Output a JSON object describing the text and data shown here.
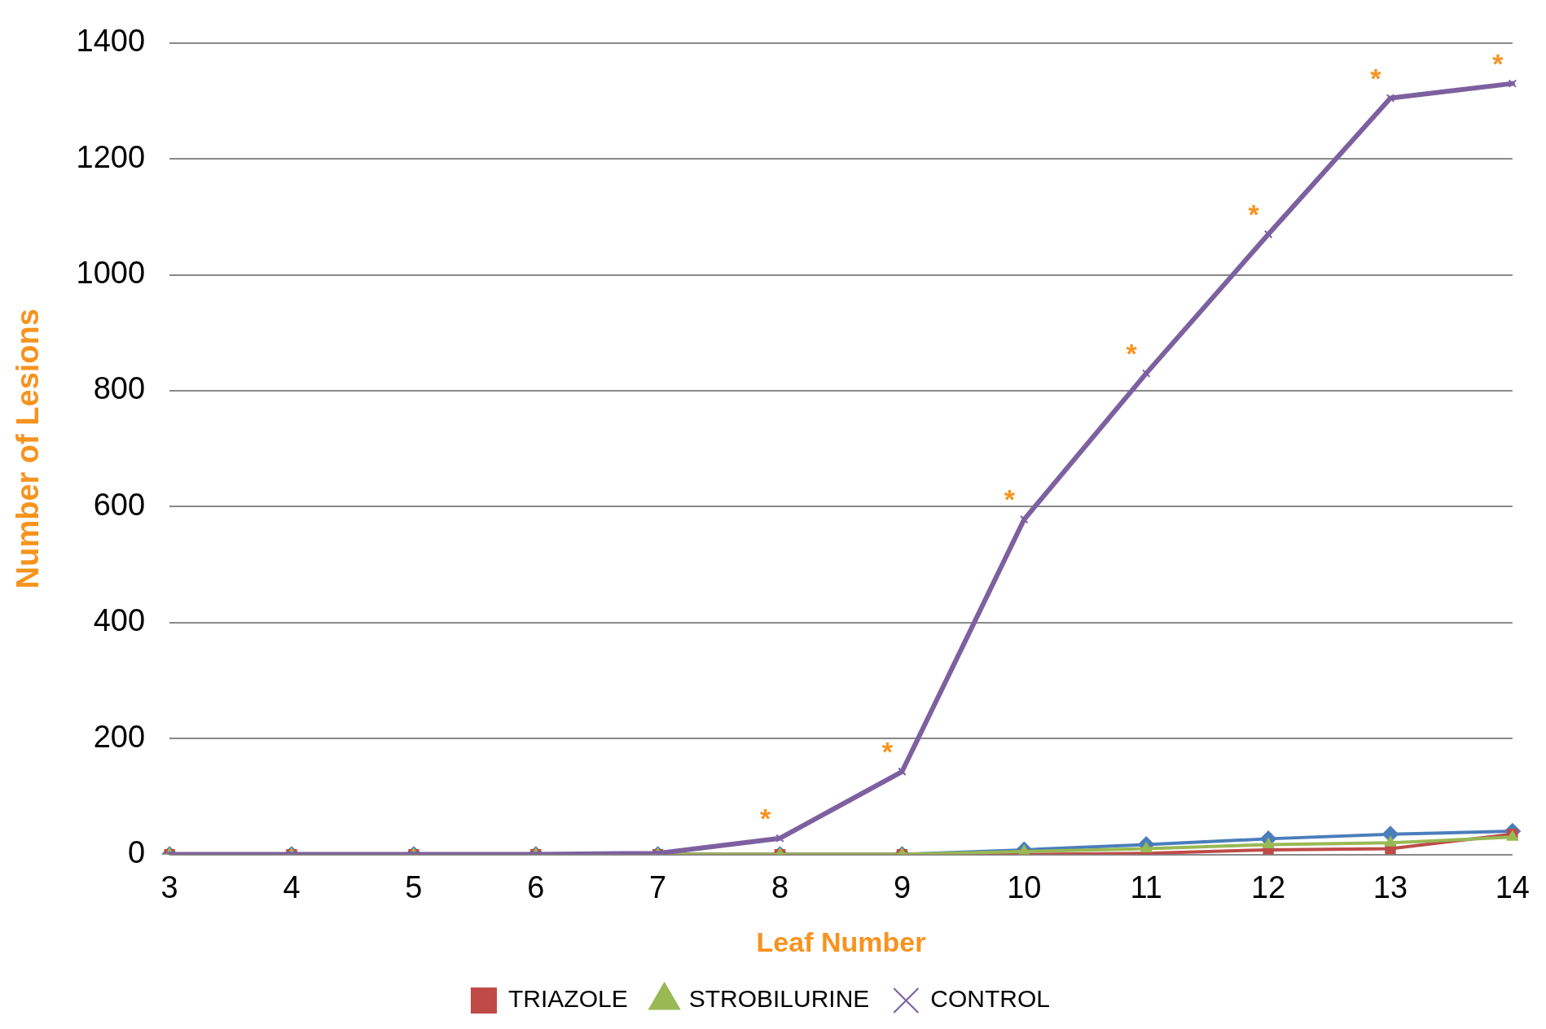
{
  "chart_data": {
    "type": "line",
    "xlabel": "Leaf Number",
    "ylabel": "Number of Lesions",
    "categories": [
      "3",
      "4",
      "5",
      "6",
      "7",
      "8",
      "9",
      "10",
      "11",
      "12",
      "13",
      "14"
    ],
    "series": [
      {
        "color": "#4a7ebb",
        "marker": "diamond",
        "values": [
          0,
          0,
          0,
          0,
          0,
          0,
          0,
          8,
          17,
          27,
          35,
          40
        ]
      },
      {
        "name": "TRIAZOLE",
        "color": "#be4b48",
        "marker": "square",
        "values": [
          0,
          0,
          0,
          0,
          0,
          0,
          0,
          0,
          2,
          8,
          10,
          35
        ]
      },
      {
        "name": "STROBILURINE",
        "color": "#98b954",
        "marker": "triangle",
        "values": [
          0,
          0,
          0,
          0,
          0,
          0,
          0,
          5,
          10,
          17,
          20,
          30
        ]
      },
      {
        "name": "CONTROL",
        "color": "#7d60a0",
        "marker": "cross",
        "values": [
          0,
          0,
          0,
          0,
          2,
          28,
          143,
          578,
          830,
          1070,
          1305,
          1330
        ]
      }
    ],
    "ylim": [
      0,
      1400
    ],
    "yticks": [
      0,
      200,
      400,
      600,
      800,
      1000,
      1200,
      1400
    ],
    "grid": "y",
    "legend": "bottom",
    "annotations": [
      {
        "text": "*",
        "x": "8",
        "y": 28
      },
      {
        "text": "*",
        "x": "9",
        "y": 143
      },
      {
        "text": "*",
        "x": "10",
        "y": 578
      },
      {
        "text": "*",
        "x": "11",
        "y": 830
      },
      {
        "text": "*",
        "x": "12",
        "y": 1070
      },
      {
        "text": "*",
        "x": "13",
        "y": 1305
      },
      {
        "text": "*",
        "x": "14",
        "y": 1330
      }
    ]
  }
}
